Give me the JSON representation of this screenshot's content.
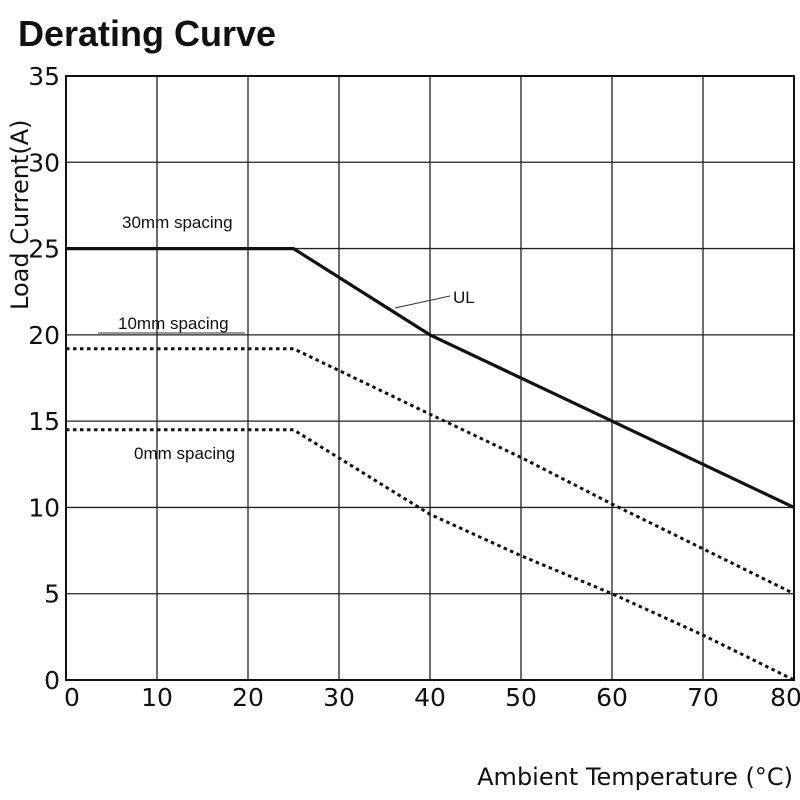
{
  "chart_data": {
    "type": "line",
    "title": "Derating Curve",
    "xlabel": "Ambient Temperature (°C)",
    "ylabel": "Load Current(A)",
    "xlim": [
      0,
      80
    ],
    "ylim": [
      0,
      35
    ],
    "xticks": [
      0,
      10,
      20,
      30,
      40,
      50,
      60,
      70,
      80
    ],
    "yticks": [
      0,
      5,
      10,
      15,
      20,
      25,
      30,
      35
    ],
    "grid": true,
    "series": [
      {
        "name": "30mm spacing",
        "style": "solid",
        "x": [
          0,
          25,
          40,
          50,
          60,
          70,
          80
        ],
        "y": [
          25,
          25,
          20,
          17.5,
          15,
          12.5,
          10
        ]
      },
      {
        "name": "10mm spacing",
        "style": "dotted",
        "x": [
          0,
          25,
          40,
          50,
          60,
          70,
          80
        ],
        "y": [
          19.2,
          19.2,
          15.4,
          12.9,
          10.2,
          7.6,
          5
        ]
      },
      {
        "name": "0mm spacing",
        "style": "dotted",
        "x": [
          0,
          25,
          40,
          50,
          60,
          70,
          80
        ],
        "y": [
          14.5,
          14.5,
          9.6,
          7.2,
          5,
          2.6,
          0
        ]
      }
    ],
    "annotations": [
      {
        "text": "30mm spacing",
        "series": "30mm spacing"
      },
      {
        "text": "10mm spacing",
        "series": "10mm spacing"
      },
      {
        "text": "0mm spacing",
        "series": "0mm spacing"
      },
      {
        "text": "UL",
        "series": "30mm spacing"
      }
    ]
  }
}
